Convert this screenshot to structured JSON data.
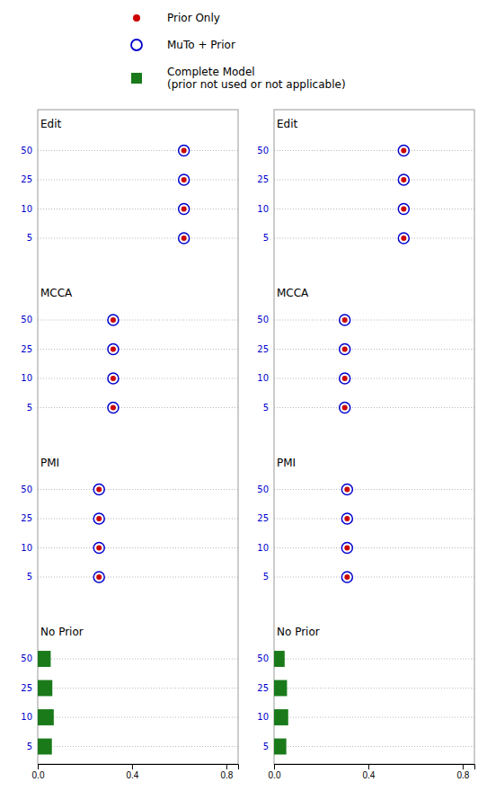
{
  "chart_data": [
    {
      "type": "bar",
      "orientation": "horizontal",
      "legend": "top",
      "grid": true,
      "groups": [
        "Edit",
        "MCCA",
        "PMI",
        "No Prior"
      ],
      "categories": [
        "50",
        "25",
        "10",
        "5",
        "50",
        "25",
        "10",
        "5",
        "50",
        "25",
        "10",
        "5",
        "50",
        "25",
        "10",
        "5"
      ],
      "xlim": [
        0.0,
        0.85
      ],
      "xticks": [
        {
          "value": 0.0,
          "label": "0.0"
        },
        0.4,
        0.8
      ],
      "series": [
        {
          "name": "Prior Only",
          "type": "scatter",
          "marker": "circle",
          "color": "#cc0000",
          "values": [
            0.62,
            0.62,
            0.62,
            0.62,
            0.32,
            0.32,
            0.32,
            0.32,
            0.26,
            0.26,
            0.26,
            0.26,
            null,
            null,
            null,
            null
          ]
        },
        {
          "name": "MuTo + Prior",
          "type": "scatter",
          "marker": "circle-open",
          "color": "#0000cc",
          "values": [
            0.62,
            0.62,
            0.62,
            0.62,
            0.32,
            0.32,
            0.32,
            0.32,
            0.26,
            0.26,
            0.26,
            0.26,
            null,
            null,
            null,
            null
          ]
        },
        {
          "name": "Complete Model\n(prior not used or not applicable)",
          "type": "bar",
          "color": "#1a7a1a",
          "values": [
            null,
            null,
            null,
            null,
            null,
            null,
            null,
            null,
            null,
            null,
            null,
            null,
            0.055,
            0.062,
            0.068,
            0.06
          ]
        }
      ]
    },
    {
      "type": "bar",
      "orientation": "horizontal",
      "grid": true,
      "groups": [
        "Edit",
        "MCCA",
        "PMI",
        "No Prior"
      ],
      "categories": [
        "50",
        "25",
        "10",
        "5",
        "50",
        "25",
        "10",
        "5",
        "50",
        "25",
        "10",
        "5",
        "50",
        "25",
        "10",
        "5"
      ],
      "xlim": [
        0.0,
        0.85
      ],
      "xticks": [
        {
          "value": 0.0,
          "label": "0.0"
        },
        0.4,
        0.8
      ],
      "series": [
        {
          "type": "scatter",
          "marker": "circle",
          "color": "#cc0000",
          "values": [
            0.55,
            0.55,
            0.55,
            0.55,
            0.3,
            0.3,
            0.3,
            0.3,
            0.31,
            0.31,
            0.31,
            0.31,
            null,
            null,
            null,
            null
          ]
        },
        {
          "type": "scatter",
          "marker": "circle-open",
          "color": "#0000cc",
          "values": [
            0.55,
            0.55,
            0.55,
            0.55,
            0.3,
            0.3,
            0.3,
            0.3,
            0.31,
            0.31,
            0.31,
            0.31,
            null,
            null,
            null,
            null
          ]
        },
        {
          "type": "bar",
          "color": "#1a7a1a",
          "values": [
            null,
            null,
            null,
            null,
            null,
            null,
            null,
            null,
            null,
            null,
            null,
            null,
            0.045,
            0.055,
            0.06,
            0.052
          ]
        }
      ]
    }
  ]
}
